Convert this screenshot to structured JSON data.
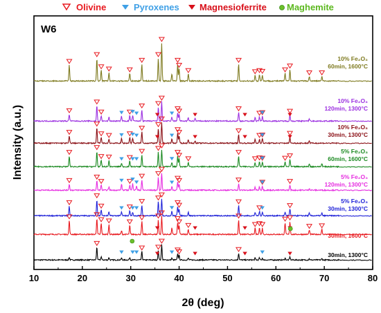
{
  "chart_data": {
    "type": "line",
    "panel_label": "W6",
    "xlabel": "2θ (deg)",
    "ylabel": "Intensity (a.u.)",
    "xlim": [
      10,
      80
    ],
    "xticks": [
      10,
      20,
      30,
      40,
      50,
      60,
      70,
      80
    ],
    "legend": [
      {
        "name": "Olivine",
        "marker": "open-triangle-down",
        "color": "#e8191f"
      },
      {
        "name": "Pyroxenes",
        "marker": "filled-triangle-down",
        "color": "#3fa0e6"
      },
      {
        "name": "Magnesioferrite",
        "marker": "filled-triangle-down",
        "color": "#d8101a"
      },
      {
        "name": "Maghemite",
        "marker": "filled-circle",
        "color": "#6bbf2a"
      }
    ],
    "series": [
      {
        "label_line1": "30min, 1300°C",
        "color": "#000000",
        "peaks": [
          [
            17.3,
            0.18
          ],
          [
            23.0,
            0.85
          ],
          [
            23.9,
            0.22
          ],
          [
            25.5,
            0.16
          ],
          [
            28.1,
            0.12
          ],
          [
            29.8,
            0.16
          ],
          [
            32.3,
            0.55
          ],
          [
            35.7,
            0.6
          ],
          [
            36.4,
            1.0
          ],
          [
            38.5,
            0.12
          ],
          [
            39.7,
            0.42
          ],
          [
            40.0,
            0.3
          ],
          [
            41.9,
            0.12
          ],
          [
            52.3,
            0.45
          ],
          [
            55.7,
            0.12
          ],
          [
            56.6,
            0.14
          ],
          [
            57.2,
            0.12
          ],
          [
            61.9,
            0.12
          ],
          [
            62.9,
            0.2
          ],
          [
            66.9,
            0.08
          ],
          [
            69.5,
            0.08
          ]
        ]
      },
      {
        "label_line1": "30min, 1600°C",
        "color": "#e8191f",
        "peaks": [
          [
            17.3,
            0.78
          ],
          [
            23.0,
            0.9
          ],
          [
            23.9,
            0.62
          ],
          [
            25.5,
            0.55
          ],
          [
            28.1,
            0.2
          ],
          [
            29.8,
            0.5
          ],
          [
            32.3,
            0.72
          ],
          [
            35.7,
            0.82
          ],
          [
            36.4,
            1.0
          ],
          [
            38.5,
            0.35
          ],
          [
            39.7,
            0.68
          ],
          [
            40.0,
            0.5
          ],
          [
            41.9,
            0.3
          ],
          [
            52.3,
            0.82
          ],
          [
            55.7,
            0.35
          ],
          [
            56.6,
            0.4
          ],
          [
            57.2,
            0.35
          ],
          [
            61.9,
            0.65
          ],
          [
            62.9,
            0.72
          ],
          [
            66.9,
            0.25
          ],
          [
            69.5,
            0.28
          ]
        ]
      },
      {
        "label_line1": "Fe₂O₃",
        "label_line2": "30min, 1300°C",
        "label_pct": "5%",
        "color": "#1f22d8",
        "peaks": [
          [
            17.3,
            0.55
          ],
          [
            23.0,
            0.95
          ],
          [
            23.9,
            0.35
          ],
          [
            25.5,
            0.22
          ],
          [
            28.1,
            0.22
          ],
          [
            29.8,
            0.3
          ],
          [
            30.4,
            0.2
          ],
          [
            32.3,
            0.62
          ],
          [
            35.7,
            0.82
          ],
          [
            36.4,
            1.0
          ],
          [
            38.5,
            0.25
          ],
          [
            39.7,
            0.55
          ],
          [
            40.0,
            0.4
          ],
          [
            41.9,
            0.2
          ],
          [
            52.3,
            0.6
          ],
          [
            55.7,
            0.2
          ],
          [
            56.6,
            0.25
          ],
          [
            57.2,
            0.22
          ],
          [
            61.9,
            0.22
          ],
          [
            62.9,
            0.38
          ],
          [
            66.9,
            0.15
          ],
          [
            69.5,
            0.15
          ]
        ]
      },
      {
        "label_line1": "Fe₂O₃",
        "label_line2": "120min, 1300°C",
        "label_pct": "5%",
        "color": "#e62ce0",
        "peaks": [
          [
            17.3,
            0.35
          ],
          [
            23.0,
            0.55
          ],
          [
            23.9,
            0.3
          ],
          [
            25.5,
            0.2
          ],
          [
            28.1,
            0.35
          ],
          [
            29.8,
            0.3
          ],
          [
            30.4,
            0.42
          ],
          [
            31.2,
            0.25
          ],
          [
            32.3,
            0.6
          ],
          [
            35.7,
            0.75
          ],
          [
            36.4,
            1.0
          ],
          [
            38.5,
            0.22
          ],
          [
            39.7,
            0.48
          ],
          [
            40.0,
            0.35
          ],
          [
            52.3,
            0.38
          ],
          [
            55.7,
            0.18
          ],
          [
            56.6,
            0.2
          ],
          [
            57.2,
            0.25
          ],
          [
            62.9,
            0.3
          ],
          [
            66.9,
            0.1
          ]
        ]
      },
      {
        "label_line1": "Fe₂O₃",
        "label_line2": "60min, 1600°C",
        "label_pct": "5%",
        "color": "#1c8a22",
        "peaks": [
          [
            17.3,
            0.62
          ],
          [
            23.0,
            0.9
          ],
          [
            23.9,
            0.38
          ],
          [
            25.5,
            0.35
          ],
          [
            28.1,
            0.2
          ],
          [
            29.8,
            0.32
          ],
          [
            32.3,
            0.68
          ],
          [
            35.7,
            0.85
          ],
          [
            36.4,
            1.0
          ],
          [
            38.5,
            0.25
          ],
          [
            39.7,
            0.62
          ],
          [
            40.0,
            0.45
          ],
          [
            41.9,
            0.25
          ],
          [
            52.3,
            0.62
          ],
          [
            55.7,
            0.25
          ],
          [
            56.6,
            0.3
          ],
          [
            57.2,
            0.28
          ],
          [
            61.9,
            0.28
          ],
          [
            62.9,
            0.42
          ],
          [
            66.9,
            0.18
          ],
          [
            69.5,
            0.2
          ]
        ]
      },
      {
        "label_line1": "Fe₂O₃",
        "label_line2": "30min, 1300°C",
        "label_pct": "10%",
        "color": "#8a0f15",
        "peaks": [
          [
            17.3,
            0.35
          ],
          [
            23.0,
            0.75
          ],
          [
            23.9,
            0.28
          ],
          [
            25.5,
            0.2
          ],
          [
            28.1,
            0.22
          ],
          [
            29.8,
            0.28
          ],
          [
            30.4,
            0.25
          ],
          [
            32.3,
            0.55
          ],
          [
            35.7,
            0.72
          ],
          [
            36.4,
            1.0
          ],
          [
            38.5,
            0.2
          ],
          [
            39.7,
            0.48
          ],
          [
            40.0,
            0.35
          ],
          [
            41.9,
            0.18
          ],
          [
            43.3,
            0.12
          ],
          [
            52.3,
            0.42
          ],
          [
            55.7,
            0.18
          ],
          [
            56.6,
            0.2
          ],
          [
            57.2,
            0.22
          ],
          [
            62.9,
            0.3
          ],
          [
            66.9,
            0.12
          ]
        ]
      },
      {
        "label_line1": "Fe₂O₃",
        "label_line2": "120min, 1300°C",
        "label_pct": "10%",
        "color": "#9b2fe0",
        "peaks": [
          [
            17.3,
            0.35
          ],
          [
            23.0,
            0.8
          ],
          [
            23.9,
            0.28
          ],
          [
            25.5,
            0.2
          ],
          [
            28.1,
            0.25
          ],
          [
            29.8,
            0.28
          ],
          [
            30.4,
            0.3
          ],
          [
            32.3,
            0.6
          ],
          [
            35.7,
            0.72
          ],
          [
            36.4,
            1.0
          ],
          [
            38.5,
            0.2
          ],
          [
            39.7,
            0.45
          ],
          [
            40.0,
            0.33
          ],
          [
            41.9,
            0.18
          ],
          [
            43.3,
            0.15
          ],
          [
            52.3,
            0.45
          ],
          [
            55.7,
            0.18
          ],
          [
            56.6,
            0.22
          ],
          [
            57.2,
            0.25
          ],
          [
            62.9,
            0.32
          ],
          [
            66.9,
            0.12
          ]
        ]
      },
      {
        "label_line1": "Fe₂O₃",
        "label_line2": "60min, 1600°C",
        "label_pct": "10%",
        "color": "#7e7a1f",
        "peaks": [
          [
            17.3,
            0.42
          ],
          [
            23.0,
            0.6
          ],
          [
            23.9,
            0.28
          ],
          [
            25.5,
            0.22
          ],
          [
            29.8,
            0.2
          ],
          [
            32.3,
            0.45
          ],
          [
            35.7,
            0.6
          ],
          [
            36.4,
            1.0
          ],
          [
            38.5,
            0.18
          ],
          [
            39.7,
            0.45
          ],
          [
            40.0,
            0.32
          ],
          [
            41.9,
            0.18
          ],
          [
            52.3,
            0.45
          ],
          [
            55.7,
            0.15
          ],
          [
            56.6,
            0.18
          ],
          [
            57.2,
            0.16
          ],
          [
            61.9,
            0.2
          ],
          [
            62.9,
            0.3
          ],
          [
            66.9,
            0.12
          ],
          [
            69.5,
            0.12
          ]
        ]
      }
    ],
    "olivine_peaks": [
      17.3,
      23.0,
      23.9,
      25.5,
      29.8,
      32.3,
      35.7,
      36.4,
      39.7,
      40.0,
      41.9,
      52.3,
      55.7,
      56.6,
      57.2,
      61.9,
      62.9,
      66.9,
      69.5
    ],
    "pyroxene_peaks": [
      28.1,
      30.4,
      31.2,
      38.5,
      57.2
    ],
    "magnesioferrite_peaks": [
      35.5,
      43.3,
      53.6,
      62.9
    ],
    "maghemite_peaks": [
      30.3,
      63.0
    ]
  }
}
